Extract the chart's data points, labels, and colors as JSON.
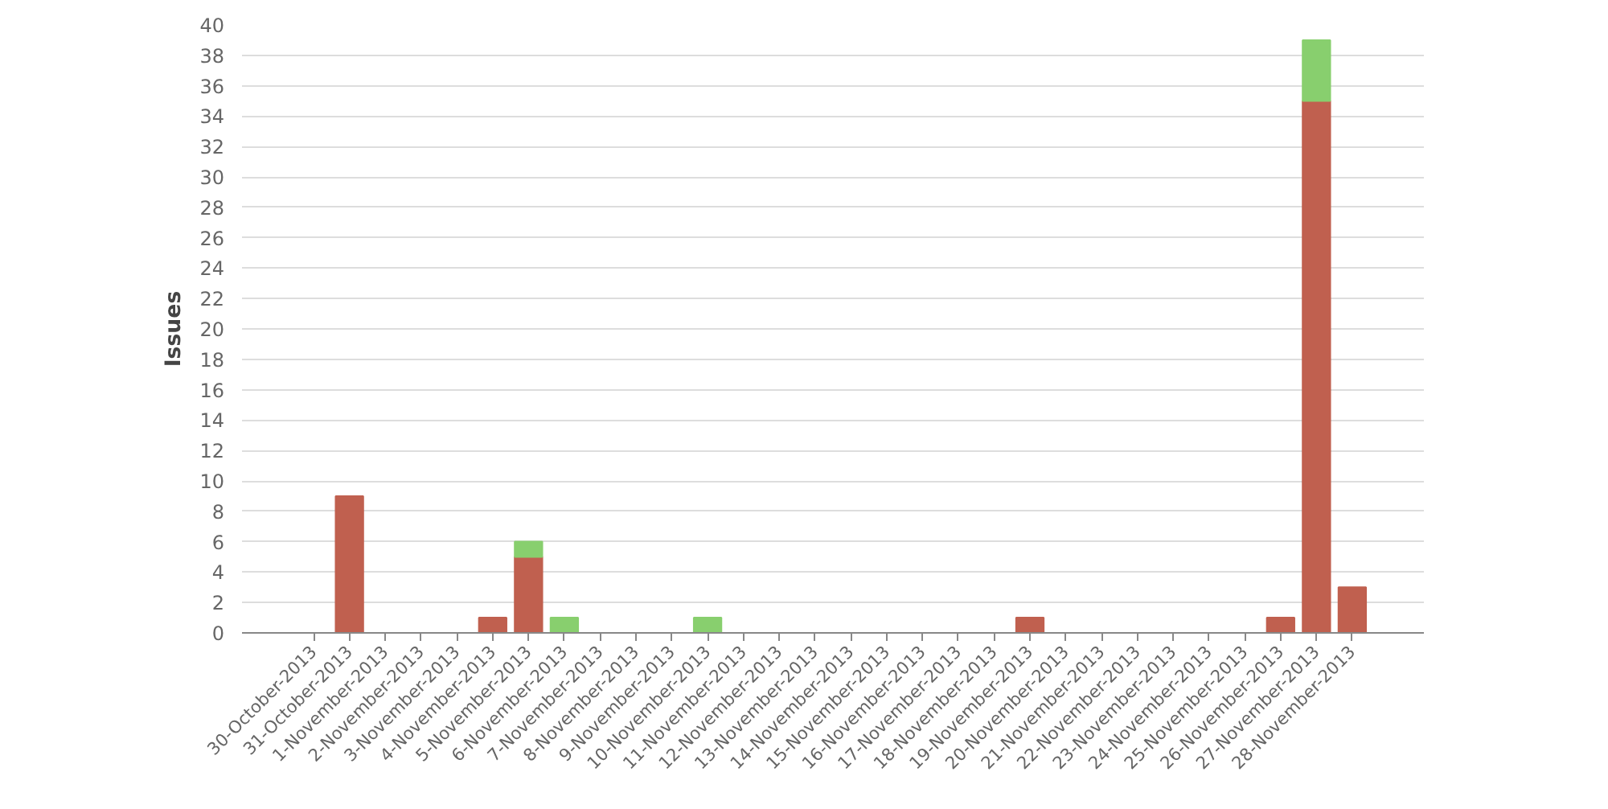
{
  "chart_data": {
    "type": "bar",
    "ylabel": "Issues",
    "stacked": true,
    "categories": [
      "30-October-2013",
      "31-October-2013",
      "1-November-2013",
      "2-November-2013",
      "3-November-2013",
      "4-November-2013",
      "5-November-2013",
      "6-November-2013",
      "7-November-2013",
      "8-November-2013",
      "9-November-2013",
      "10-November-2013",
      "11-November-2013",
      "12-November-2013",
      "13-November-2013",
      "14-November-2013",
      "15-November-2013",
      "16-November-2013",
      "17-November-2013",
      "18-November-2013",
      "19-November-2013",
      "20-November-2013",
      "21-November-2013",
      "22-November-2013",
      "23-November-2013",
      "24-November-2013",
      "25-November-2013",
      "26-November-2013",
      "27-November-2013",
      "28-November-2013"
    ],
    "series": [
      {
        "color": "#c0604f",
        "values": [
          0,
          9,
          0,
          0,
          0,
          1,
          5,
          0,
          0,
          0,
          0,
          0,
          0,
          0,
          0,
          0,
          0,
          0,
          0,
          0,
          1,
          0,
          0,
          0,
          0,
          0,
          0,
          1,
          35,
          3
        ]
      },
      {
        "color": "#88cf6e",
        "values": [
          0,
          0,
          0,
          0,
          0,
          0,
          1,
          1,
          0,
          0,
          0,
          1,
          0,
          0,
          0,
          0,
          0,
          0,
          0,
          0,
          0,
          0,
          0,
          0,
          0,
          0,
          0,
          0,
          4,
          0
        ]
      }
    ],
    "ylim": [
      0,
      40
    ],
    "yticks": [
      0,
      2,
      4,
      6,
      8,
      10,
      12,
      14,
      16,
      18,
      20,
      22,
      24,
      26,
      28,
      30,
      32,
      34,
      36,
      38,
      40
    ],
    "grid": "y"
  }
}
